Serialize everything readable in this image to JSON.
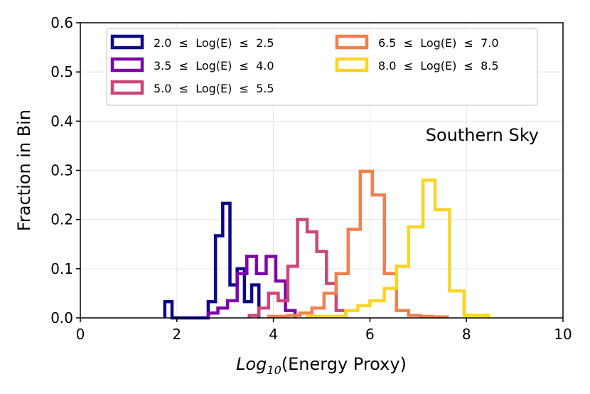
{
  "chart_data": {
    "type": "step-histogram",
    "title": "",
    "xlabel_italic": "Log",
    "xlabel_sub": "10",
    "xlabel_rest": "(Energy Proxy)",
    "ylabel": "Fraction in Bin",
    "xlim": [
      0,
      10
    ],
    "ylim": [
      0,
      0.6
    ],
    "xticks": [
      0,
      2,
      4,
      6,
      8,
      10
    ],
    "yticks": [
      0.0,
      0.1,
      0.2,
      0.3,
      0.4,
      0.5,
      0.6
    ],
    "xtick_labels": [
      "0",
      "2",
      "4",
      "6",
      "8",
      "10"
    ],
    "ytick_labels": [
      "0.0",
      "0.1",
      "0.2",
      "0.3",
      "0.4",
      "0.5",
      "0.6"
    ],
    "grid": true,
    "legend_position": "top",
    "annotation": "Southern Sky",
    "series": [
      {
        "name": "2.0 ≤ Log(E) ≤ 2.5",
        "color": "#0d0887",
        "edges": [
          1.75,
          1.9,
          2.05,
          2.2,
          2.35,
          2.5,
          2.65,
          2.8,
          2.95,
          3.1,
          3.25,
          3.4,
          3.55,
          3.7
        ],
        "values": [
          0.033,
          0.0,
          0.0,
          0.0,
          0.0,
          0.0,
          0.033,
          0.167,
          0.233,
          0.067,
          0.1,
          0.033,
          0.067
        ]
      },
      {
        "name": "3.5 ≤ Log(E) ≤ 4.0",
        "color": "#7e03a8",
        "edges": [
          2.65,
          2.85,
          3.05,
          3.25,
          3.45,
          3.65,
          3.85,
          4.05,
          4.25,
          4.45
        ],
        "values": [
          0.01,
          0.02,
          0.035,
          0.09,
          0.125,
          0.09,
          0.125,
          0.075,
          0.015
        ]
      },
      {
        "name": "5.0 ≤ Log(E) ≤ 5.5",
        "color": "#cc4778",
        "edges": [
          3.5,
          3.7,
          3.9,
          4.1,
          4.3,
          4.5,
          4.7,
          4.9,
          5.1,
          5.3,
          5.5
        ],
        "values": [
          0.005,
          0.02,
          0.05,
          0.035,
          0.105,
          0.2,
          0.175,
          0.135,
          0.07,
          0.015
        ]
      },
      {
        "name": "6.5 ≤ Log(E) ≤ 7.0",
        "color": "#f0804f",
        "edges": [
          3.9,
          4.3,
          4.55,
          4.8,
          5.05,
          5.3,
          5.55,
          5.8,
          6.05,
          6.3,
          6.55,
          6.8,
          7.05,
          7.3,
          7.6
        ],
        "values": [
          0.003,
          0.005,
          0.01,
          0.02,
          0.05,
          0.09,
          0.18,
          0.298,
          0.25,
          0.09,
          0.015,
          0.005,
          0.003,
          0.002
        ]
      },
      {
        "name": "8.0 ≤ Log(E) ≤ 8.5",
        "color": "#f9d423",
        "edges": [
          4.7,
          5.5,
          5.75,
          6.0,
          6.3,
          6.55,
          6.8,
          7.1,
          7.35,
          7.65,
          7.95,
          8.45
        ],
        "values": [
          0.003,
          0.015,
          0.025,
          0.035,
          0.06,
          0.105,
          0.185,
          0.28,
          0.22,
          0.055,
          0.005
        ]
      }
    ]
  }
}
